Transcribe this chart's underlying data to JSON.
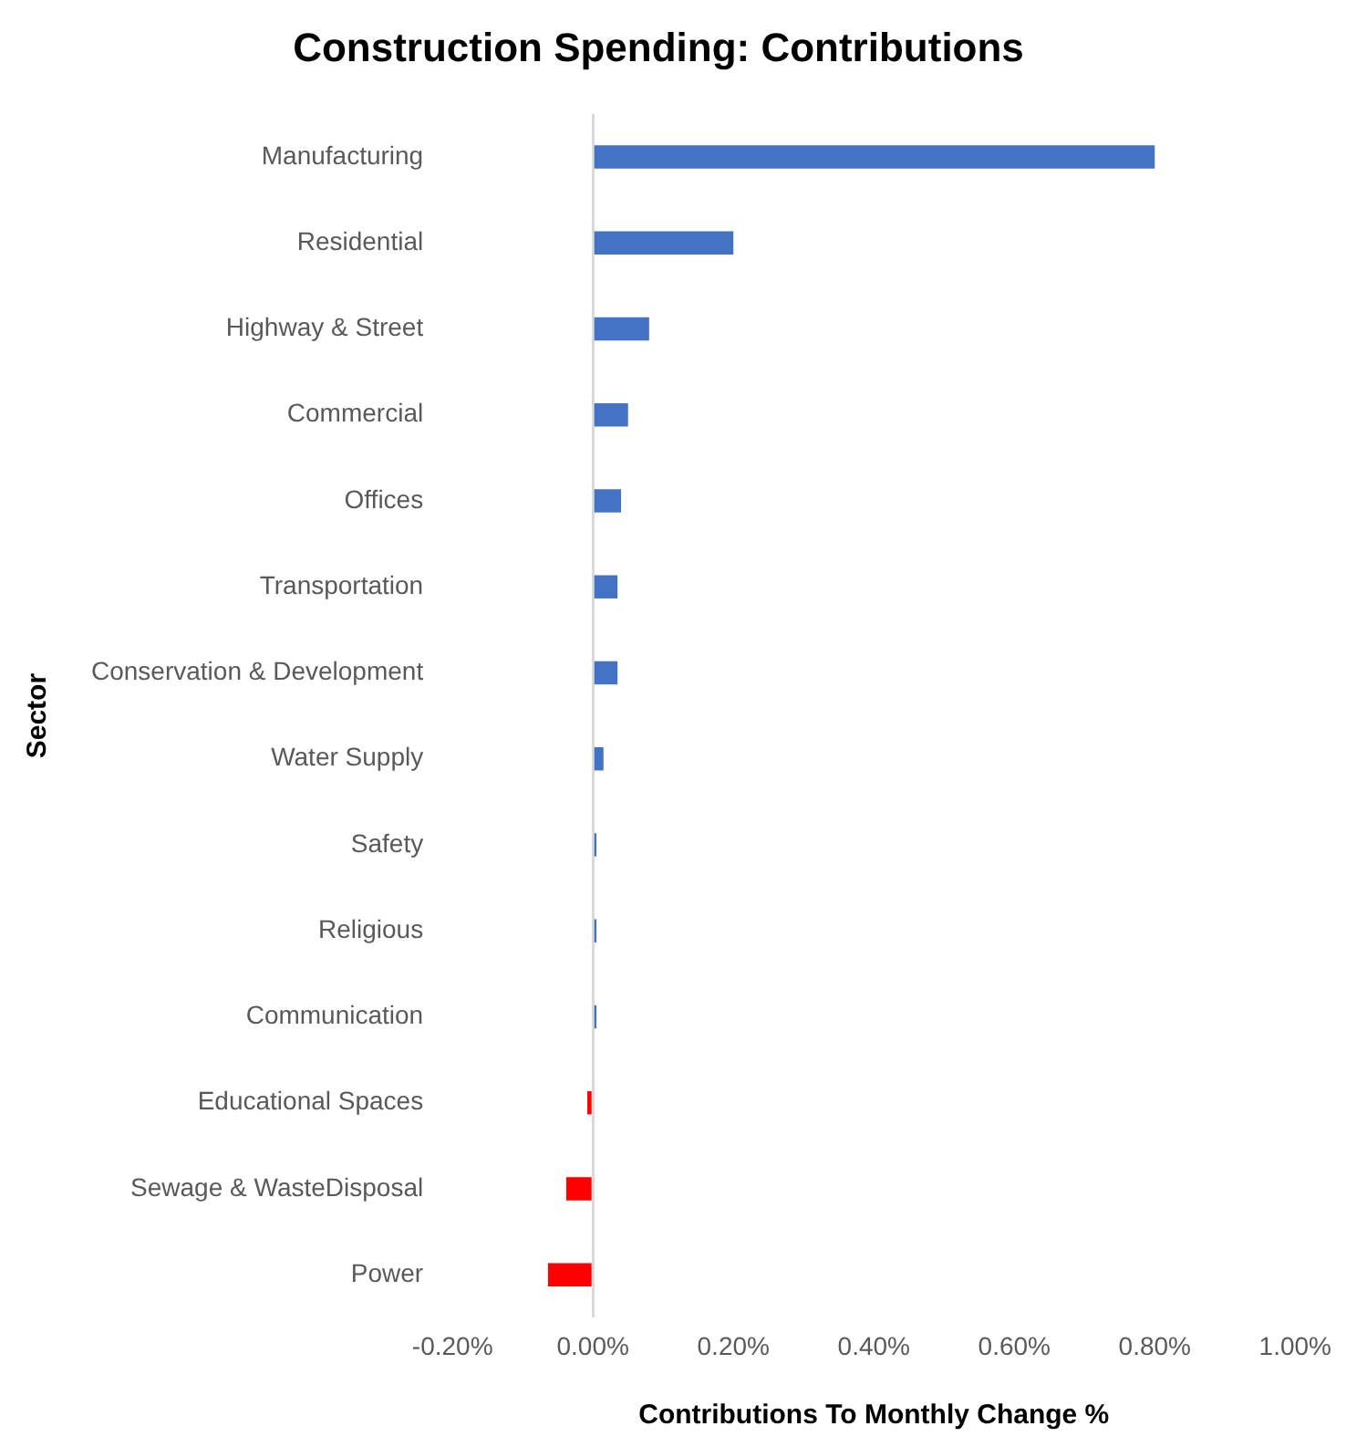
{
  "chart_data": {
    "type": "bar",
    "orientation": "horizontal",
    "title": "Construction Spending: Contributions",
    "xlabel": "Contributions To Monthly Change %",
    "ylabel": "Sector",
    "categories": [
      "Manufacturing",
      "Residential",
      "Highway & Street",
      "Commercial",
      "Offices",
      "Transportation",
      "Conservation & Development",
      "Water Supply",
      "Safety",
      "Religious",
      "Communication",
      "Educational Spaces",
      "Sewage & WasteDisposal",
      "Power"
    ],
    "values": [
      0.8,
      0.2,
      0.08,
      0.05,
      0.04,
      0.035,
      0.035,
      0.015,
      0.005,
      0.005,
      0.005,
      -0.008,
      -0.038,
      -0.064
    ],
    "colors": [
      "#4472c4",
      "#4472c4",
      "#4472c4",
      "#4472c4",
      "#4472c4",
      "#4472c4",
      "#4472c4",
      "#4472c4",
      "#4472c4",
      "#4472c4",
      "#4472c4",
      "#ff0000",
      "#ff0000",
      "#ff0000"
    ],
    "xlim": [
      -0.2,
      1.0
    ],
    "xticks": [
      {
        "value": -0.2,
        "label": "-0.20%"
      },
      {
        "value": 0,
        "label": "0.00%"
      },
      {
        "value": 0.2,
        "label": "0.20%"
      },
      {
        "value": 0.4,
        "label": "0.40%"
      },
      {
        "value": 0.6,
        "label": "0.60%"
      },
      {
        "value": 0.8,
        "label": "0.80%"
      },
      {
        "value": 1.0,
        "label": "1.00%"
      }
    ],
    "legend": false
  }
}
